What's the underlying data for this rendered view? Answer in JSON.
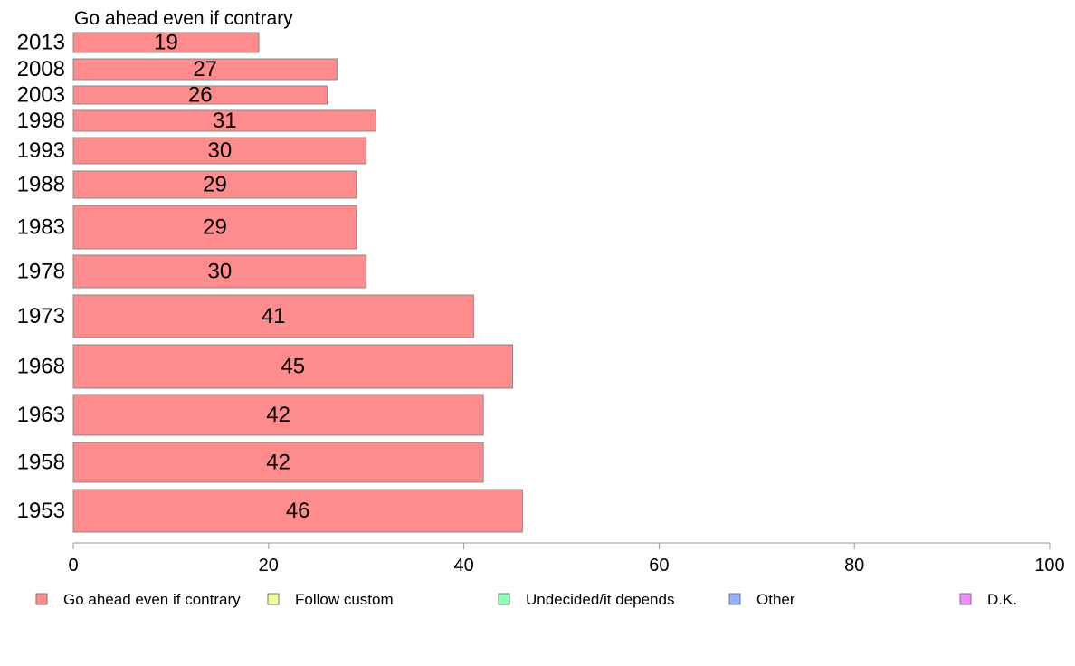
{
  "chart_data": {
    "type": "bar",
    "orientation": "horizontal",
    "title": "Go ahead even if contrary",
    "categories": [
      "2013",
      "2008",
      "2003",
      "1998",
      "1993",
      "1988",
      "1983",
      "1978",
      "1973",
      "1968",
      "1963",
      "1958",
      "1953"
    ],
    "series": [
      {
        "name": "Go ahead even if contrary",
        "color": "#ff8c8c",
        "values": [
          19,
          27,
          26,
          31,
          30,
          29,
          29,
          30,
          41,
          45,
          42,
          42,
          46
        ],
        "value_labels": [
          "19",
          "27",
          "26",
          "31",
          "30",
          "29",
          "29",
          "30",
          "41",
          "45",
          "42",
          "42",
          "46"
        ]
      }
    ],
    "xlim": [
      0,
      100
    ],
    "x_ticks": [
      "0",
      "20",
      "40",
      "60",
      "80",
      "100"
    ],
    "grid": false,
    "legend_position": "bottom",
    "legend": [
      {
        "label": "Go ahead even if contrary",
        "color": "#ff8c8c"
      },
      {
        "label": "Follow custom",
        "color": "#f0ff96"
      },
      {
        "label": "Undecided/it depends",
        "color": "#8cffb4"
      },
      {
        "label": "Other",
        "color": "#8cb4ff"
      },
      {
        "label": "D.K.",
        "color": "#f08cff"
      }
    ]
  }
}
